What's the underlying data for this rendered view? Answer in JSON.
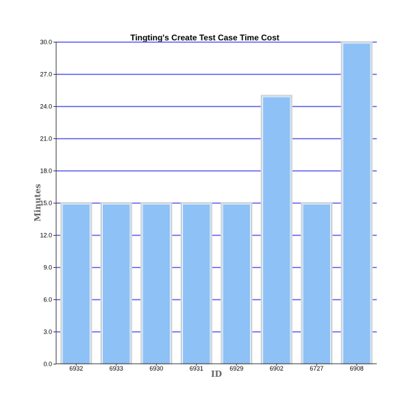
{
  "chart_data": {
    "type": "bar",
    "title": "Tingting's Create Test Case Time Cost",
    "xlabel": "ID",
    "ylabel": "Minutes",
    "categories": [
      "6932",
      "6933",
      "6930",
      "6931",
      "6929",
      "6902",
      "6727",
      "6908"
    ],
    "values": [
      15,
      15,
      15,
      15,
      15,
      25,
      15,
      30
    ],
    "ylim": [
      0,
      30
    ],
    "yticks": [
      "0.0",
      "3.0",
      "6.0",
      "9.0",
      "12.0",
      "15.0",
      "18.0",
      "21.0",
      "24.0",
      "27.0",
      "30.0"
    ],
    "grid": true,
    "colors": {
      "bar_fill": "#8ec1f5",
      "bar_stroke": "#ffffff",
      "grid": "#5555ee",
      "axis": "#333333"
    }
  }
}
